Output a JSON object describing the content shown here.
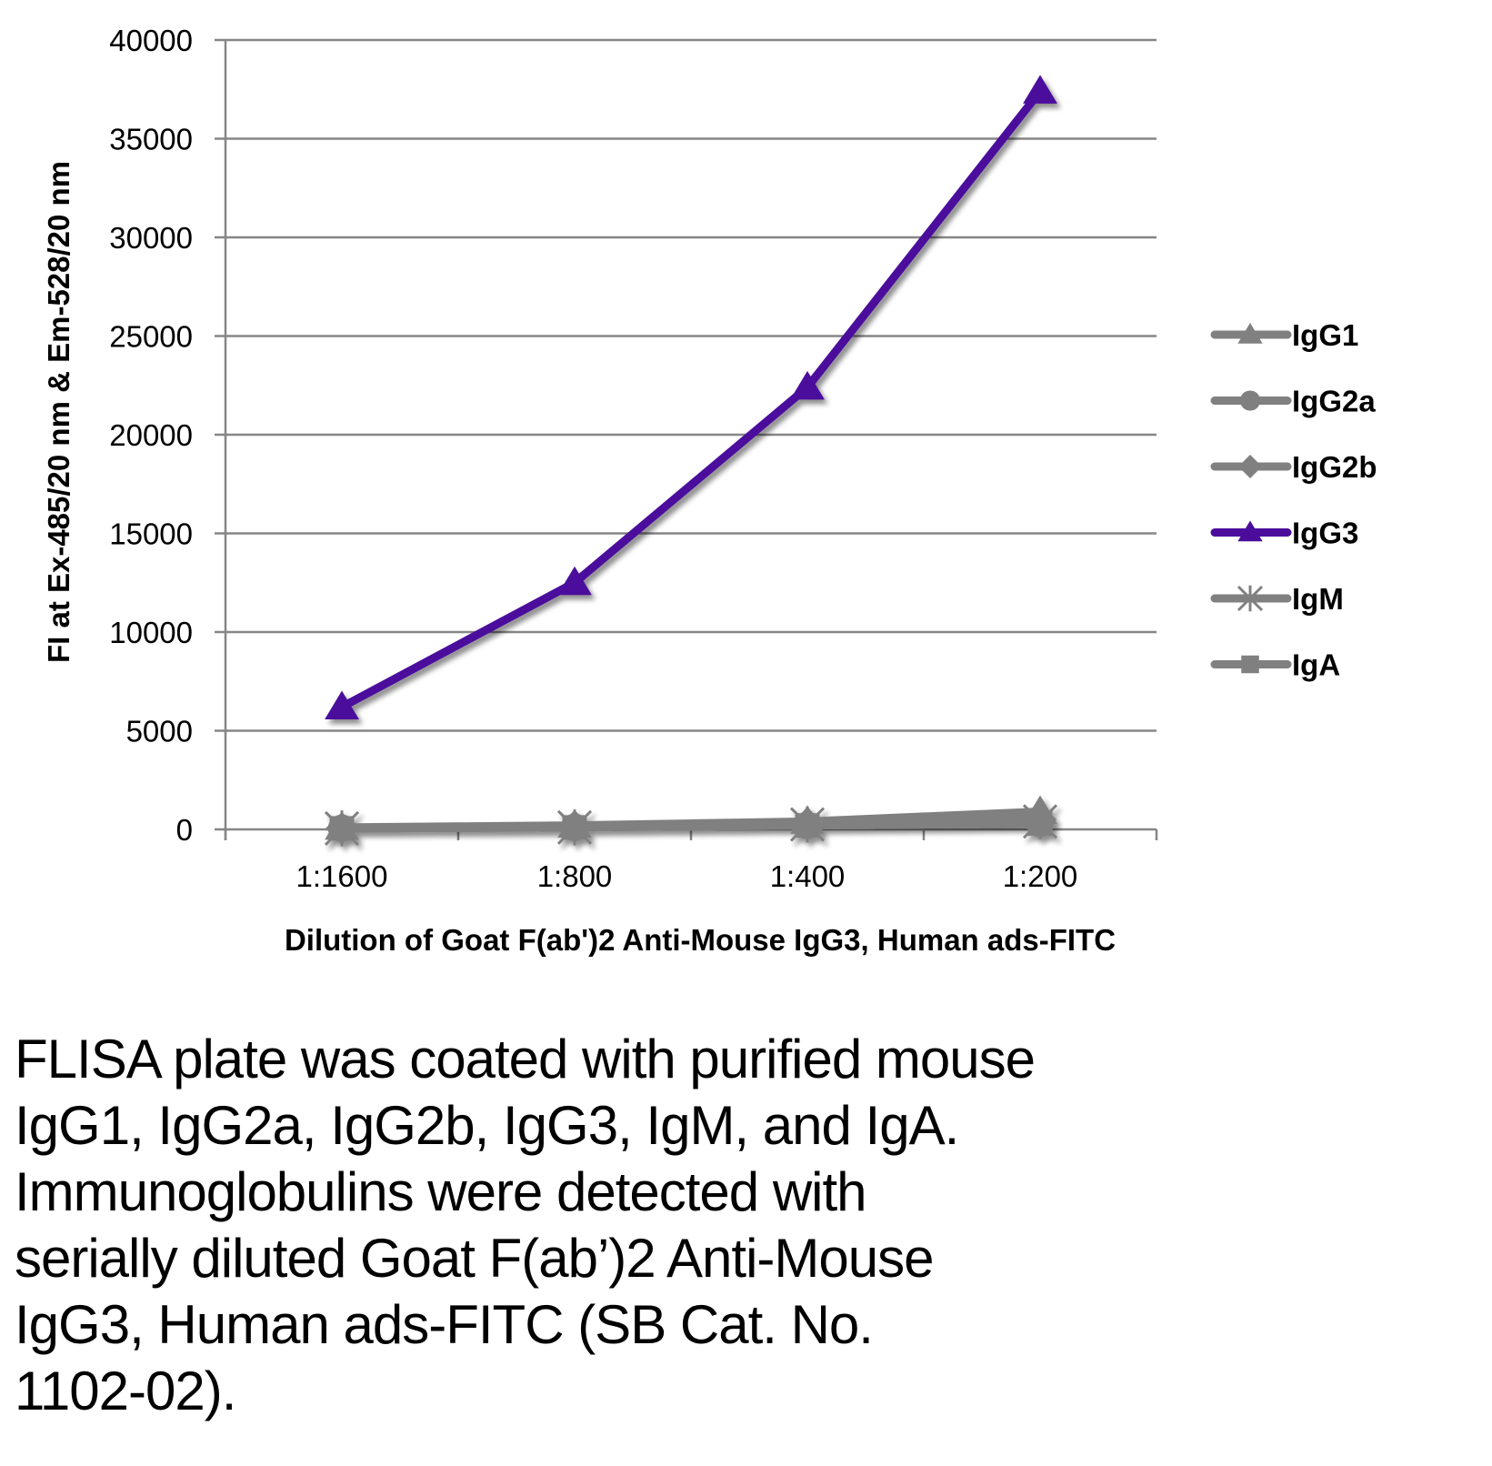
{
  "chart_data": {
    "type": "line",
    "title": "",
    "xlabel": "Dilution of Goat F(ab')2 Anti-Mouse IgG3, Human ads-FITC",
    "ylabel": "FI at Ex-485/20 nm & Em-528/20 nm",
    "categories": [
      "1:1600",
      "1:800",
      "1:400",
      "1:200"
    ],
    "ylim": [
      0,
      40000
    ],
    "yticks": [
      "0",
      "5000",
      "10000",
      "15000",
      "20000",
      "25000",
      "30000",
      "35000",
      "40000"
    ],
    "ytick_values": [
      0,
      5000,
      10000,
      15000,
      20000,
      25000,
      30000,
      35000,
      40000
    ],
    "grid": true,
    "legend_position": "right",
    "series": [
      {
        "name": "IgG1",
        "marker": "triangle",
        "color": "#808080",
        "values": [
          100,
          200,
          400,
          900
        ]
      },
      {
        "name": "IgG2a",
        "marker": "circle",
        "color": "#808080",
        "values": [
          50,
          100,
          200,
          300
        ]
      },
      {
        "name": "IgG2b",
        "marker": "diamond",
        "color": "#808080",
        "values": [
          50,
          150,
          300,
          500
        ]
      },
      {
        "name": "IgG3",
        "marker": "triangle",
        "color": "#4B0C9C",
        "values": [
          6200,
          12500,
          22400,
          37400
        ]
      },
      {
        "name": "IgM",
        "marker": "star",
        "color": "#808080",
        "values": [
          50,
          100,
          250,
          400
        ]
      },
      {
        "name": "IgA",
        "marker": "square",
        "color": "#808080",
        "values": [
          50,
          100,
          200,
          300
        ]
      }
    ]
  },
  "caption": {
    "lines": [
      "FLISA plate was coated with purified mouse",
      "IgG1, IgG2a, IgG2b, IgG3, IgM, and IgA.",
      "Immunoglobulins were detected with",
      "serially diluted Goat F(ab’)2 Anti-Mouse",
      "IgG3, Human ads-FITC (SB Cat. No.",
      "1102-02)."
    ]
  }
}
